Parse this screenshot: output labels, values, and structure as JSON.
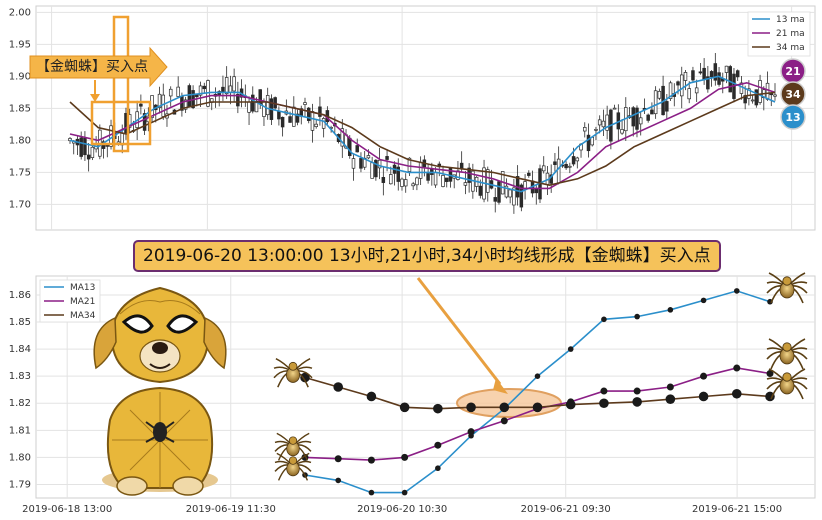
{
  "colors": {
    "ma13": "#2b8fcb",
    "ma21": "#8b1f86",
    "ma34": "#5c3a1c",
    "candle": "#2a2a2a",
    "highlight": "#f0a030",
    "banner_bg": "#f5c25a",
    "banner_border": "#6b2d6f"
  },
  "top_panel": {
    "arrow_label": "【金蜘蛛】买入点",
    "badges": [
      "21",
      "34",
      "13"
    ]
  },
  "banner": {
    "text": "2019-06-20 13:00:00 13小时,21小时,34小时均线形成【金蜘蛛】买入点"
  },
  "decorations": [
    "spider-dog-icon",
    "spider-icon"
  ],
  "chart_data": [
    {
      "type": "candlestick",
      "title": "",
      "ylim": [
        1.66,
        2.01
      ],
      "ytick_labels": [
        "1.70",
        "1.75",
        "1.80",
        "1.85",
        "1.90",
        "1.95",
        "2.00"
      ],
      "grid": true,
      "legend_position": "top-right",
      "series": [
        {
          "name": "13 ma",
          "values": [
            1.8,
            1.79,
            1.82,
            1.85,
            1.87,
            1.875,
            1.875,
            1.85,
            1.84,
            1.83,
            1.78,
            1.76,
            1.75,
            1.75,
            1.74,
            1.73,
            1.72,
            1.74,
            1.79,
            1.82,
            1.84,
            1.86,
            1.89,
            1.9,
            1.88,
            1.86
          ]
        },
        {
          "name": "21 ma",
          "values": [
            1.81,
            1.8,
            1.82,
            1.84,
            1.86,
            1.87,
            1.87,
            1.86,
            1.85,
            1.84,
            1.8,
            1.77,
            1.76,
            1.755,
            1.75,
            1.74,
            1.725,
            1.725,
            1.75,
            1.79,
            1.81,
            1.83,
            1.85,
            1.88,
            1.89,
            1.875
          ]
        },
        {
          "name": "34 ma",
          "values": [
            1.86,
            1.82,
            1.81,
            1.83,
            1.85,
            1.86,
            1.86,
            1.86,
            1.85,
            1.84,
            1.82,
            1.79,
            1.77,
            1.76,
            1.755,
            1.75,
            1.74,
            1.73,
            1.74,
            1.76,
            1.79,
            1.81,
            1.83,
            1.85,
            1.87,
            1.875
          ]
        }
      ]
    },
    {
      "type": "line",
      "title": "",
      "ylim": [
        1.785,
        1.867
      ],
      "yticks": [
        1.79,
        1.8,
        1.81,
        1.82,
        1.83,
        1.84,
        1.85,
        1.86
      ],
      "xtick_labels": [
        "2019-06-18 13:00",
        "2019-06-19 11:30",
        "2019-06-20 10:30",
        "2019-06-21 09:30",
        "2019-06-21 15:00"
      ],
      "grid": true,
      "legend_position": "top-left",
      "series": [
        {
          "name": "MA13",
          "values": [
            1.7935,
            1.7915,
            1.787,
            1.787,
            1.796,
            1.808,
            1.818,
            1.83,
            1.84,
            1.851,
            1.852,
            1.8545,
            1.858,
            1.8615,
            1.8575
          ]
        },
        {
          "name": "MA21",
          "values": [
            1.8,
            1.7995,
            1.799,
            1.8,
            1.8045,
            1.8095,
            1.8135,
            1.818,
            1.8205,
            1.8245,
            1.8245,
            1.826,
            1.83,
            1.833,
            1.831
          ]
        },
        {
          "name": "MA34",
          "values": [
            1.8295,
            1.826,
            1.8225,
            1.8185,
            1.818,
            1.8185,
            1.8185,
            1.8185,
            1.8195,
            1.82,
            1.8205,
            1.8215,
            1.8225,
            1.8235,
            1.8225
          ]
        }
      ]
    }
  ]
}
